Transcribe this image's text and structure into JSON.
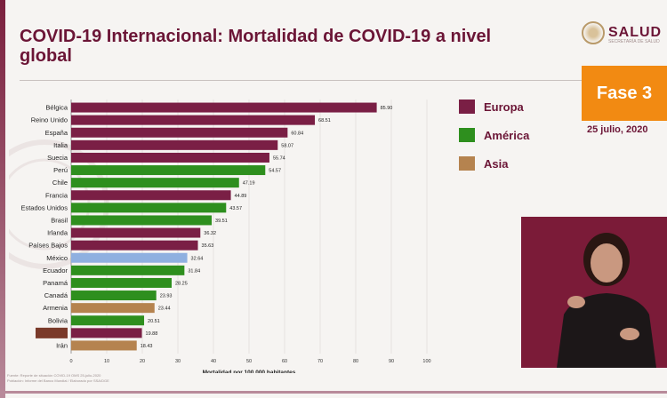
{
  "title": "COVID-19 Internacional: Mortalidad de COVID-19 a nivel global",
  "logo": {
    "name": "SALUD",
    "subtitle": "SECRETARÍA DE SALUD"
  },
  "phase": "Fase 3",
  "date": "25 julio, 2020",
  "legend": [
    {
      "label": "Europa",
      "color": "#7a1f45"
    },
    {
      "label": "América",
      "color": "#2e8f1e"
    },
    {
      "label": "Asia",
      "color": "#b5834f"
    }
  ],
  "footnote_lines": [
    "Fuente: Reporte de situación COVID-19 OMS 25-julio-2020",
    "Población: Informe del Banco Mundial / Elaborado por SSA/DGE"
  ],
  "chart_data": {
    "type": "bar",
    "orientation": "horizontal",
    "title": "",
    "xlabel": "Mortalidad por 100,000 habitantes",
    "ylabel": "",
    "xlim": [
      0,
      100
    ],
    "xticks": [
      0,
      10,
      20,
      30,
      40,
      50,
      60,
      70,
      80,
      90,
      100
    ],
    "categories": [
      "Bélgica",
      "Reino Unido",
      "España",
      "Italia",
      "Suecia",
      "Perú",
      "Chile",
      "Francia",
      "Estados Unidos",
      "Brasil",
      "Irlanda",
      "Países Bajos",
      "México",
      "Ecuador",
      "Panamá",
      "Canadá",
      "Armenia",
      "Bolivia",
      "",
      "Irán"
    ],
    "values": [
      85.9,
      68.51,
      60.84,
      58.07,
      55.74,
      54.57,
      47.19,
      44.89,
      43.57,
      39.51,
      36.32,
      35.63,
      32.64,
      31.84,
      28.25,
      23.93,
      23.44,
      20.51,
      19.88,
      18.43
    ],
    "value_labels": [
      "85.90",
      "68.51",
      "60.84",
      "58.07",
      "55.74",
      "54.57",
      "47.19",
      "44.89",
      "43.57",
      "39.51",
      "36.32",
      "35.63",
      "32.64",
      "31.84",
      "28.25",
      "23.93",
      "23.44",
      "20.51",
      "19.88",
      "18.43"
    ],
    "regions": [
      "Europa",
      "Europa",
      "Europa",
      "Europa",
      "Europa",
      "América",
      "América",
      "Europa",
      "América",
      "América",
      "Europa",
      "Europa",
      "México",
      "América",
      "América",
      "América",
      "Asia",
      "América",
      "Europa",
      "Asia"
    ],
    "colors": {
      "Europa": "#7a1f45",
      "América": "#2e8f1e",
      "Asia": "#b5834f",
      "México": "#8fb0e0"
    },
    "grid": true,
    "legend_position": "right"
  }
}
